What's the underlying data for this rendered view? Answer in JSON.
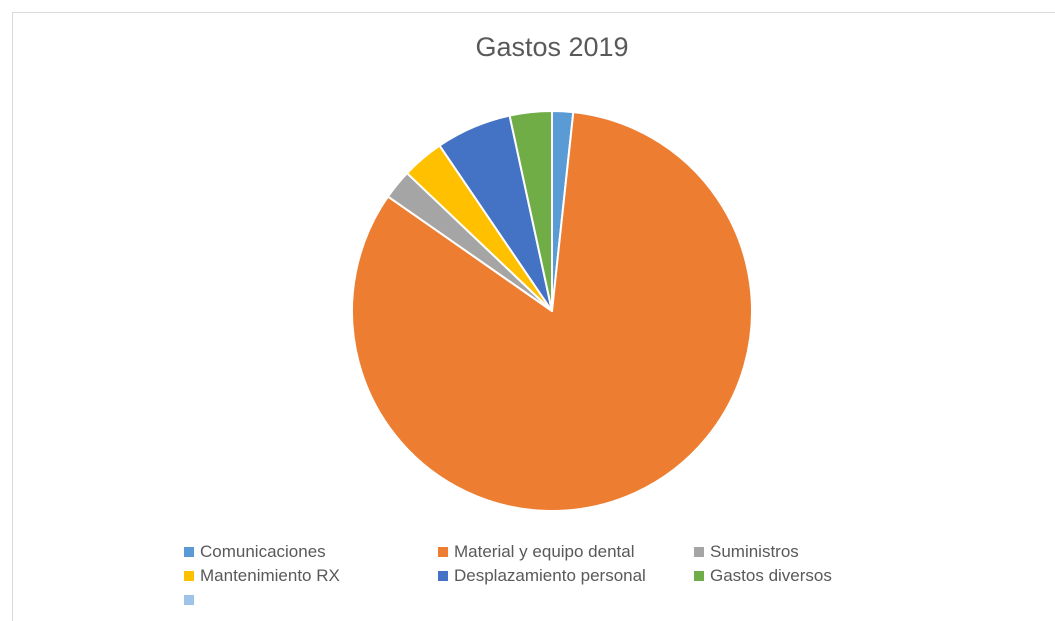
{
  "chart_data": {
    "type": "pie",
    "title": "Gastos 2019",
    "slices": [
      {
        "label": "Comunicaciones",
        "value": 1.7,
        "color": "#5B9BD5"
      },
      {
        "label": "Material y equipo dental",
        "value": 83.0,
        "color": "#ED7D31"
      },
      {
        "label": "Suministros",
        "value": 2.4,
        "color": "#A5A5A5"
      },
      {
        "label": "Mantenimiento RX",
        "value": 3.4,
        "color": "#FFC000"
      },
      {
        "label": "Desplazamiento personal",
        "value": 6.1,
        "color": "#4472C4"
      },
      {
        "label": "Gastos diversos",
        "value": 3.4,
        "color": "#70AD47"
      }
    ],
    "legend": {
      "position": "bottom",
      "entries": [
        {
          "label": "Comunicaciones",
          "color": "#5B9BD5"
        },
        {
          "label": "Material y equipo dental",
          "color": "#ED7D31"
        },
        {
          "label": "Suministros",
          "color": "#A5A5A5"
        },
        {
          "label": "Mantenimiento RX",
          "color": "#FFC000"
        },
        {
          "label": "Desplazamiento personal",
          "color": "#4472C4"
        },
        {
          "label": "Gastos diversos",
          "color": "#70AD47"
        },
        {
          "label": "",
          "color": "#9DC3E6"
        }
      ]
    },
    "start_angle_deg": 0,
    "direction": "clockwise"
  }
}
